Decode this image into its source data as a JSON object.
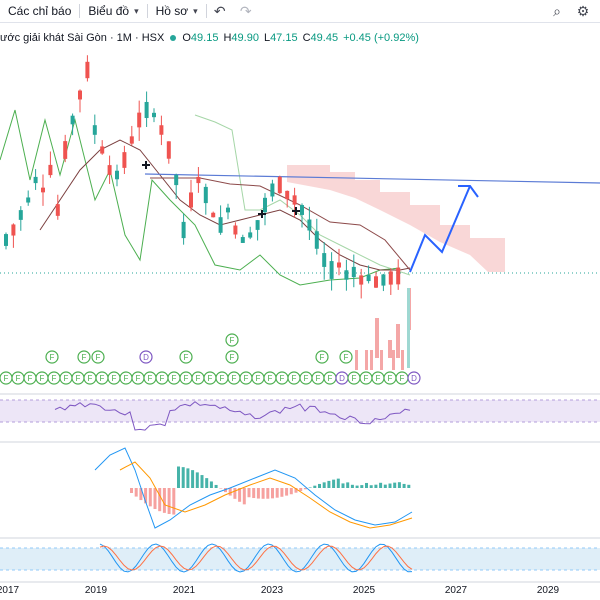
{
  "toolbar": {
    "indicators_label": "Các chỉ báo",
    "chart_label": "Biểu đồ",
    "profile_label": "Hồ sơ",
    "undo_icon": "undo-icon",
    "redo_icon": "redo-icon",
    "search_icon": "search-icon",
    "settings_icon": "gear-icon"
  },
  "legend": {
    "symbol": "ước giải khát Sài Gòn · 1M · HSX",
    "o_label": "O",
    "o_value": "49.15",
    "h_label": "H",
    "h_value": "49.90",
    "l_label": "L",
    "l_value": "47.15",
    "c_label": "C",
    "c_value": "49.45",
    "change": "+0.45 (+0.92%)"
  },
  "colors": {
    "up": "#26a69a",
    "down": "#ef5350",
    "trend_line": "#5b7bd5",
    "projection": "#2962ff",
    "cloud": "#f7c6c6",
    "rsi_band": "#e9e0f5",
    "stoch_band": "#dcecf7"
  },
  "chart_data": {
    "type": "candlestick",
    "timeframe": "1M",
    "x_ticks": [
      "2017",
      "2019",
      "2021",
      "2023",
      "2025",
      "2027",
      "2029"
    ],
    "last": {
      "open": 49.15,
      "high": 49.9,
      "low": 47.15,
      "close": 49.45,
      "change": 0.45,
      "change_pct": 0.92
    },
    "event_markers": [
      "F",
      "D"
    ]
  }
}
